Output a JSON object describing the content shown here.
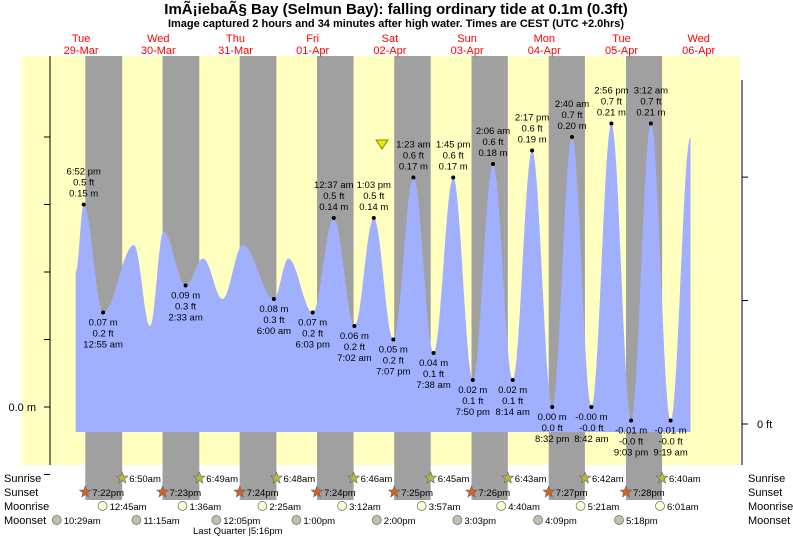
{
  "header": {
    "title": "ImÃ¡iebaÃ§ Bay (Selmun Bay): falling  ordinary tide at 0.1m (0.3ft)",
    "subtitle": "Image captured 2 hours and 34 minutes after high water. Times are CEST (UTC +2.0hrs)"
  },
  "colors": {
    "day": "#ffffc0",
    "night": "#a0a0a0",
    "water": "#a0b0ff",
    "day_label": "#ff0000",
    "sunrise_star": "#b8b840",
    "sunset_star": "#d86020",
    "moonrise": "#ffffd0",
    "moonset": "#c0c0b0"
  },
  "days": [
    {
      "dow": "Tue",
      "date": "29-Mar"
    },
    {
      "dow": "Wed",
      "date": "30-Mar"
    },
    {
      "dow": "Thu",
      "date": "31-Mar"
    },
    {
      "dow": "Fri",
      "date": "01-Apr"
    },
    {
      "dow": "Sat",
      "date": "02-Apr"
    },
    {
      "dow": "Sun",
      "date": "03-Apr"
    },
    {
      "dow": "Mon",
      "date": "04-Apr"
    },
    {
      "dow": "Tue",
      "date": "05-Apr"
    },
    {
      "dow": "Wed",
      "date": "06-Apr"
    }
  ],
  "chart_data": {
    "type": "area",
    "title": "ImÃ¡iebaÃ§ Bay (Selmun Bay): falling  ordinary tide at 0.1m (0.3ft)",
    "y_unit_left": "m",
    "y_unit_right": "ft",
    "ylim_m": [
      -0.05,
      0.22
    ],
    "y_labels": {
      "left_zero": "0.0 m",
      "right_zero": "0 ft"
    },
    "x_start": "2022-03-29 00:00",
    "current_marker": {
      "time": "2022-04-02 15:37",
      "height_m": 0.1
    },
    "series": [
      {
        "name": "tide",
        "extremes": [
          {
            "time": "2022-03-29 18:52",
            "height_m": 0.15,
            "labels": [
              "6:52 pm",
              "0.5 ft",
              "0.15 m"
            ],
            "type": "high"
          },
          {
            "time": "2022-03-30 00:55",
            "height_m": 0.07,
            "labels": [
              "0.07 m",
              "0.2 ft",
              "12:55 am"
            ],
            "type": "low"
          },
          {
            "time": "2022-03-30 10:30",
            "height_m": 0.12,
            "labels": [],
            "type": "high"
          },
          {
            "time": "2022-03-30 15:30",
            "height_m": 0.06,
            "labels": [],
            "type": "low"
          },
          {
            "time": "2022-03-30 19:40",
            "height_m": 0.13,
            "labels": [],
            "type": "high"
          },
          {
            "time": "2022-03-31 02:33",
            "height_m": 0.09,
            "labels": [
              "0.09 m",
              "0.3 ft",
              "2:33 am"
            ],
            "type": "low"
          },
          {
            "time": "2022-03-31 08:00",
            "height_m": 0.11,
            "labels": [],
            "type": "high"
          },
          {
            "time": "2022-03-31 14:00",
            "height_m": 0.08,
            "labels": [],
            "type": "low"
          },
          {
            "time": "2022-03-31 20:20",
            "height_m": 0.12,
            "labels": [],
            "type": "high"
          },
          {
            "time": "2022-04-01 06:00",
            "height_m": 0.08,
            "labels": [
              "0.08 m",
              "0.3 ft",
              "6:00 am"
            ],
            "type": "low"
          },
          {
            "time": "2022-04-01 10:30",
            "height_m": 0.11,
            "labels": [],
            "type": "high"
          },
          {
            "time": "2022-04-01 18:03",
            "height_m": 0.07,
            "labels": [
              "0.07 m",
              "0.2 ft",
              "6:03 pm"
            ],
            "type": "low"
          },
          {
            "time": "2022-04-02 00:37",
            "height_m": 0.14,
            "labels": [
              "12:37 am",
              "0.5 ft",
              "0.14 m"
            ],
            "type": "high"
          },
          {
            "time": "2022-04-02 07:02",
            "height_m": 0.06,
            "labels": [
              "0.06 m",
              "0.2 ft",
              "7:02 am"
            ],
            "type": "low"
          },
          {
            "time": "2022-04-02 13:03",
            "height_m": 0.14,
            "labels": [
              "1:03 pm",
              "0.5 ft",
              "0.14 m"
            ],
            "type": "high"
          },
          {
            "time": "2022-04-02 19:07",
            "height_m": 0.05,
            "labels": [
              "0.05 m",
              "0.2 ft",
              "7:07 pm"
            ],
            "type": "low"
          },
          {
            "time": "2022-04-03 01:23",
            "height_m": 0.17,
            "labels": [
              "1:23 am",
              "0.6 ft",
              "0.17 m"
            ],
            "type": "high"
          },
          {
            "time": "2022-04-03 07:38",
            "height_m": 0.04,
            "labels": [
              "0.04 m",
              "0.1 ft",
              "7:38 am"
            ],
            "type": "low"
          },
          {
            "time": "2022-04-03 13:45",
            "height_m": 0.17,
            "labels": [
              "1:45 pm",
              "0.6 ft",
              "0.17 m"
            ],
            "type": "high"
          },
          {
            "time": "2022-04-03 19:50",
            "height_m": 0.02,
            "labels": [
              "0.02 m",
              "0.1 ft",
              "7:50 pm"
            ],
            "type": "low"
          },
          {
            "time": "2022-04-04 02:06",
            "height_m": 0.18,
            "labels": [
              "2:06 am",
              "0.6 ft",
              "0.18 m"
            ],
            "type": "high"
          },
          {
            "time": "2022-04-04 08:14",
            "height_m": 0.02,
            "labels": [
              "0.02 m",
              "0.1 ft",
              "8:14 am"
            ],
            "type": "low"
          },
          {
            "time": "2022-04-04 14:17",
            "height_m": 0.19,
            "labels": [
              "2:17 pm",
              "0.6 ft",
              "0.19 m"
            ],
            "type": "high"
          },
          {
            "time": "2022-04-04 20:32",
            "height_m": 0.0,
            "labels": [
              "0.00 m",
              "0.0 ft",
              "8:32 pm"
            ],
            "type": "low"
          },
          {
            "time": "2022-04-05 02:40",
            "height_m": 0.2,
            "labels": [
              "2:40 am",
              "0.7 ft",
              "0.20 m"
            ],
            "type": "high"
          },
          {
            "time": "2022-04-05 08:42",
            "height_m": 0.0,
            "labels": [
              "-0.00 m",
              "-0.0 ft",
              "8:42 am"
            ],
            "type": "low"
          },
          {
            "time": "2022-04-05 14:56",
            "height_m": 0.21,
            "labels": [
              "2:56 pm",
              "0.7 ft",
              "0.21 m"
            ],
            "type": "high"
          },
          {
            "time": "2022-04-05 21:03",
            "height_m": -0.01,
            "labels": [
              "-0.01 m",
              "-0.0 ft",
              "9:03 pm"
            ],
            "type": "low"
          },
          {
            "time": "2022-04-06 03:12",
            "height_m": 0.21,
            "labels": [
              "3:12 am",
              "0.7 ft",
              "0.21 m"
            ],
            "type": "high"
          },
          {
            "time": "2022-04-06 09:19",
            "height_m": -0.01,
            "labels": [
              "-0.01 m",
              "-0.0 ft",
              "9:19 am"
            ],
            "type": "low"
          },
          {
            "time": "2022-04-06 15:30",
            "height_m": 0.2,
            "labels": [],
            "type": "high"
          }
        ]
      }
    ]
  },
  "astro": {
    "row_labels": {
      "sunrise": "Sunrise",
      "sunset": "Sunset",
      "moonrise": "Moonrise",
      "moonset": "Moonset"
    },
    "sunrise": [
      "6:50am",
      "6:49am",
      "6:48am",
      "6:46am",
      "6:45am",
      "6:43am",
      "6:42am",
      "6:40am"
    ],
    "sunset": [
      "7:22pm",
      "7:23pm",
      "7:24pm",
      "7:24pm",
      "7:25pm",
      "7:26pm",
      "7:27pm",
      "7:28pm"
    ],
    "moonrise": [
      "12:45am",
      "1:36am",
      "2:25am",
      "3:12am",
      "3:57am",
      "4:40am",
      "5:21am",
      "6:01am"
    ],
    "moonset": [
      "10:29am",
      "11:15am",
      "12:05pm",
      "1:00pm",
      "2:00pm",
      "3:03pm",
      "4:09pm",
      "5:18pm"
    ],
    "moon_phase": "Last Quarter |5:16pm"
  }
}
